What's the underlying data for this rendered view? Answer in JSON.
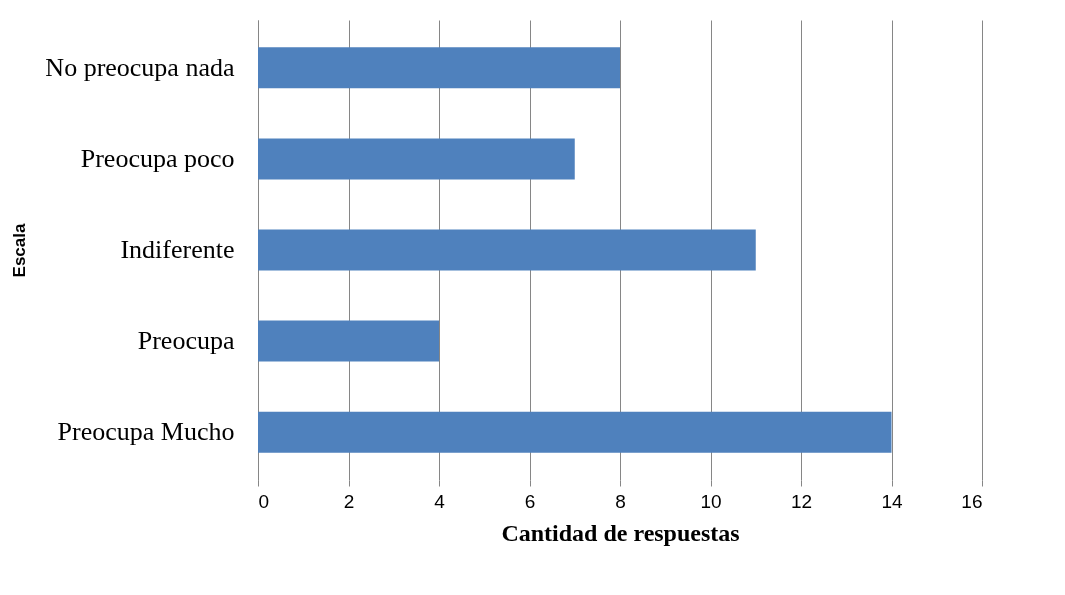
{
  "chart_data": {
    "type": "bar",
    "orientation": "horizontal",
    "xlabel": "Cantidad de respuestas",
    "ylabel": "Escala",
    "categories": [
      "No preocupa nada",
      "Preocupa poco",
      "Indiferente",
      "Preocupa",
      "Preocupa Mucho"
    ],
    "values": [
      8,
      7,
      11,
      4,
      14
    ],
    "color": "#4f81bd",
    "xlim": [
      0,
      16
    ],
    "xticks": [
      0,
      2,
      4,
      6,
      8,
      10,
      12,
      14,
      16
    ],
    "grid": "x"
  }
}
